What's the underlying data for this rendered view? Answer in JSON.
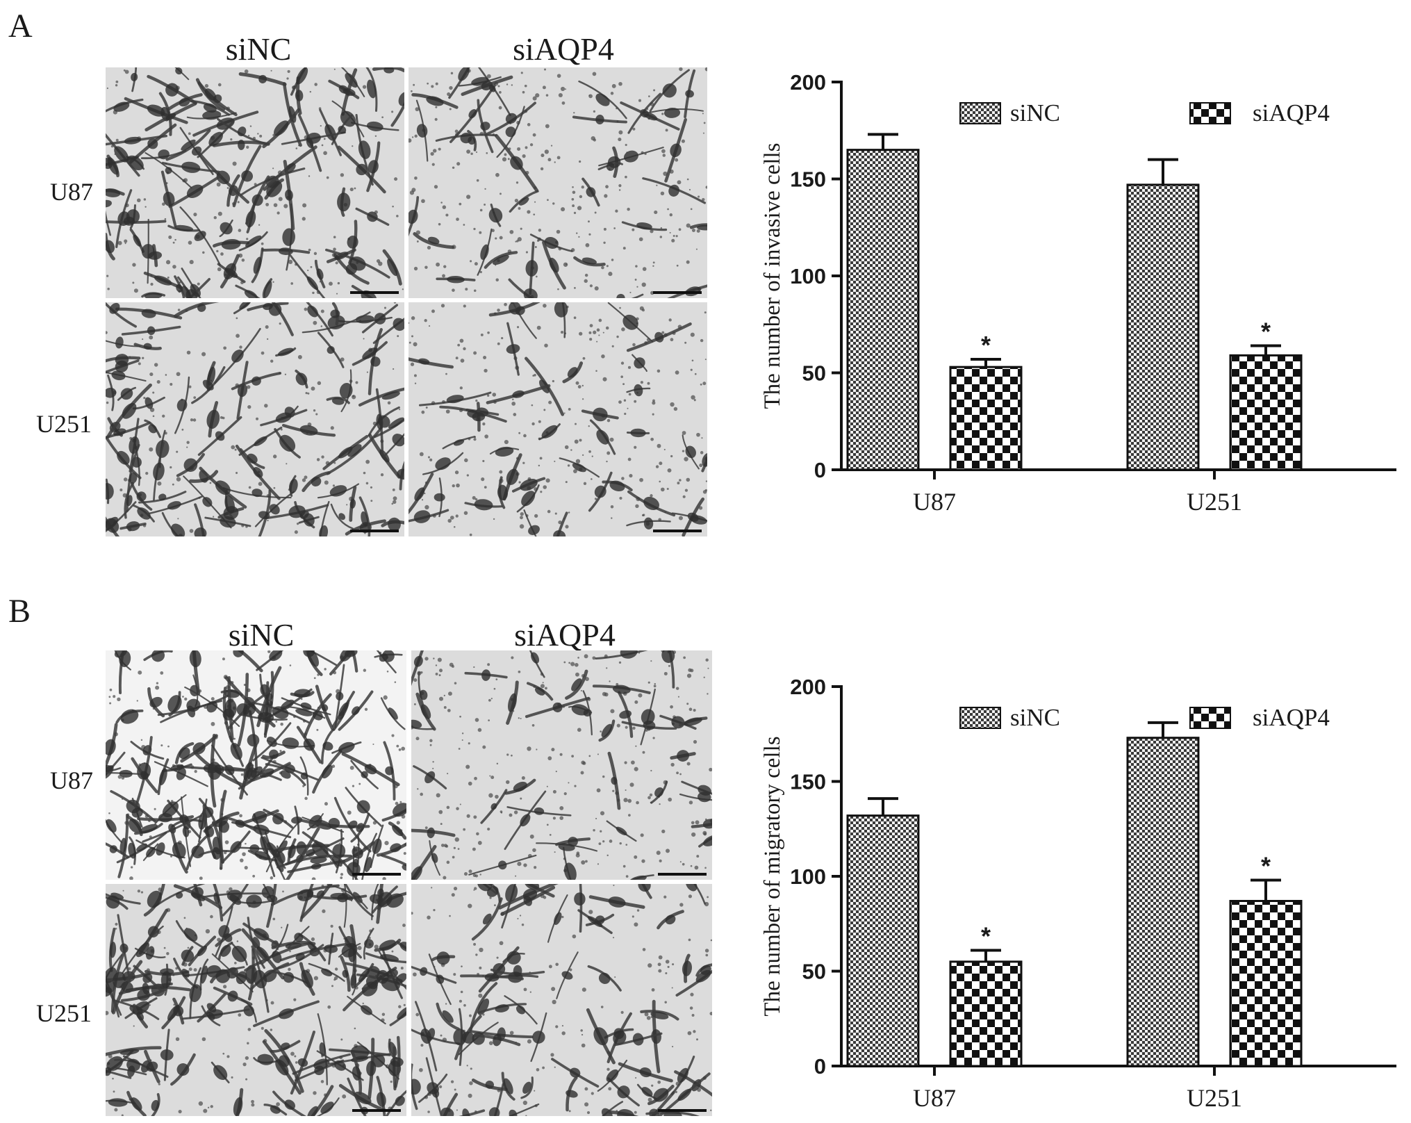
{
  "panels": [
    {
      "letter": "A",
      "columns": [
        "siNC",
        "siAQP4"
      ],
      "rows": [
        "U87",
        "U251"
      ],
      "chart_data": {
        "type": "bar",
        "categories": [
          "U87",
          "U251"
        ],
        "series": [
          {
            "name": "siNC",
            "values": [
              165,
              147
            ],
            "errors": [
              8,
              13
            ],
            "pattern": "fine-check"
          },
          {
            "name": "siAQP4",
            "values": [
              53,
              59
            ],
            "errors": [
              4,
              5
            ],
            "pattern": "coarse-check"
          }
        ],
        "significance": [
          "*",
          "*"
        ],
        "ylabel": "The number of  invasive cells",
        "xlabel": "",
        "ylim": [
          0,
          200
        ],
        "yticks": [
          0,
          50,
          100,
          150,
          200
        ],
        "legend": "top",
        "grid": false
      }
    },
    {
      "letter": "B",
      "columns": [
        "siNC",
        "siAQP4"
      ],
      "rows": [
        "U87",
        "U251"
      ],
      "chart_data": {
        "type": "bar",
        "categories": [
          "U87",
          "U251"
        ],
        "series": [
          {
            "name": "siNC",
            "values": [
              132,
              173
            ],
            "errors": [
              9,
              8
            ],
            "pattern": "fine-check"
          },
          {
            "name": "siAQP4",
            "values": [
              55,
              87
            ],
            "errors": [
              6,
              11
            ],
            "pattern": "coarse-check"
          }
        ],
        "significance": [
          "*",
          "*"
        ],
        "ylabel": "The number of  migratory cells",
        "xlabel": "",
        "ylim": [
          0,
          200
        ],
        "yticks": [
          0,
          50,
          100,
          150,
          200
        ],
        "legend": "top",
        "grid": false
      }
    }
  ]
}
